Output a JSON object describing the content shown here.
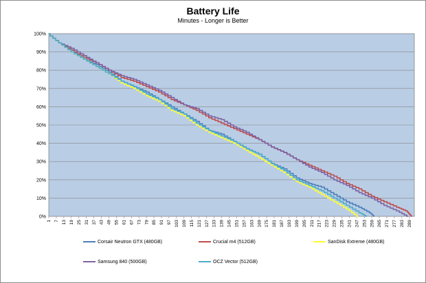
{
  "chart_data": {
    "type": "line",
    "title": "Battery Life",
    "subtitle": "Minutes - Longer is Better",
    "xlabel": "",
    "ylabel": "",
    "ylim": [
      0,
      100
    ],
    "y_ticks": [
      "0%",
      "10%",
      "20%",
      "30%",
      "40%",
      "50%",
      "60%",
      "70%",
      "80%",
      "90%",
      "100%"
    ],
    "x_ticks": [
      "1",
      "7",
      "13",
      "19",
      "25",
      "31",
      "37",
      "43",
      "49",
      "55",
      "61",
      "67",
      "73",
      "79",
      "85",
      "91",
      "97",
      "103",
      "109",
      "115",
      "121",
      "127",
      "133",
      "139",
      "145",
      "151",
      "157",
      "163",
      "169",
      "175",
      "181",
      "187",
      "193",
      "199",
      "205",
      "211",
      "217",
      "223",
      "229",
      "235",
      "241",
      "247",
      "253",
      "259",
      "265",
      "271",
      "277",
      "283",
      "289"
    ],
    "xlim": [
      1,
      293
    ],
    "grid": true,
    "legend_position": "bottom",
    "series": [
      {
        "name": "Corsair Neutron GTX (480GB)",
        "color": "#4a7ebb",
        "x": [
          1,
          10,
          20,
          30,
          40,
          50,
          60,
          70,
          80,
          90,
          100,
          110,
          120,
          130,
          140,
          150,
          160,
          170,
          180,
          190,
          200,
          210,
          220,
          230,
          240,
          250,
          258,
          261
        ],
        "y": [
          100,
          95,
          91,
          86,
          83,
          79,
          74,
          71,
          68,
          64,
          60,
          56,
          52,
          47,
          45,
          41,
          37,
          34,
          29,
          26,
          21,
          18,
          16,
          12,
          8,
          5,
          2,
          0
        ]
      },
      {
        "name": "Crucial m4 (512GB)",
        "color": "#be4b48",
        "x": [
          1,
          10,
          20,
          30,
          40,
          50,
          60,
          70,
          80,
          90,
          100,
          110,
          120,
          130,
          140,
          150,
          160,
          170,
          180,
          190,
          200,
          210,
          220,
          230,
          240,
          250,
          260,
          270,
          280,
          287,
          291
        ],
        "y": [
          100,
          95,
          91,
          87,
          84,
          80,
          76,
          74,
          71,
          68,
          64,
          61,
          58,
          54,
          51,
          48,
          45,
          42,
          38,
          35,
          31,
          28,
          25,
          22,
          18,
          15,
          11,
          8,
          5,
          3,
          0
        ]
      },
      {
        "name": "SanDisk Extreme (480GB)",
        "color": "#ffff33",
        "x": [
          1,
          10,
          20,
          30,
          40,
          50,
          60,
          70,
          80,
          90,
          100,
          110,
          120,
          130,
          140,
          150,
          160,
          170,
          180,
          190,
          200,
          210,
          220,
          230,
          240,
          248
        ],
        "y": [
          100,
          95,
          90,
          86,
          82,
          78,
          73,
          70,
          66,
          63,
          58,
          55,
          50,
          46,
          43,
          40,
          36,
          32,
          28,
          24,
          19,
          16,
          12,
          8,
          4,
          0
        ]
      },
      {
        "name": "Samsung 840 (500GB)",
        "color": "#7d60a0",
        "x": [
          1,
          10,
          20,
          30,
          40,
          50,
          60,
          70,
          80,
          90,
          100,
          110,
          120,
          130,
          140,
          150,
          160,
          170,
          180,
          190,
          200,
          210,
          220,
          230,
          240,
          250,
          260,
          270,
          280,
          288
        ],
        "y": [
          100,
          95,
          92,
          88,
          84,
          80,
          77,
          75,
          72,
          69,
          65,
          61,
          59,
          55,
          53,
          49,
          46,
          42,
          38,
          35,
          31,
          27,
          24,
          20,
          17,
          13,
          10,
          6,
          3,
          0
        ]
      },
      {
        "name": "OCZ Vector (512GB)",
        "color": "#4bacc6",
        "x": [
          1,
          10,
          20,
          30,
          40,
          50,
          60,
          70,
          80,
          90,
          100,
          110,
          120,
          130,
          140,
          150,
          160,
          170,
          180,
          190,
          200,
          210,
          220,
          230,
          240,
          250,
          255
        ],
        "y": [
          100,
          95,
          90,
          86,
          82,
          78,
          74,
          71,
          67,
          64,
          59,
          56,
          51,
          47,
          44,
          41,
          37,
          34,
          29,
          25,
          20,
          17,
          14,
          10,
          6,
          2,
          0
        ]
      }
    ]
  }
}
